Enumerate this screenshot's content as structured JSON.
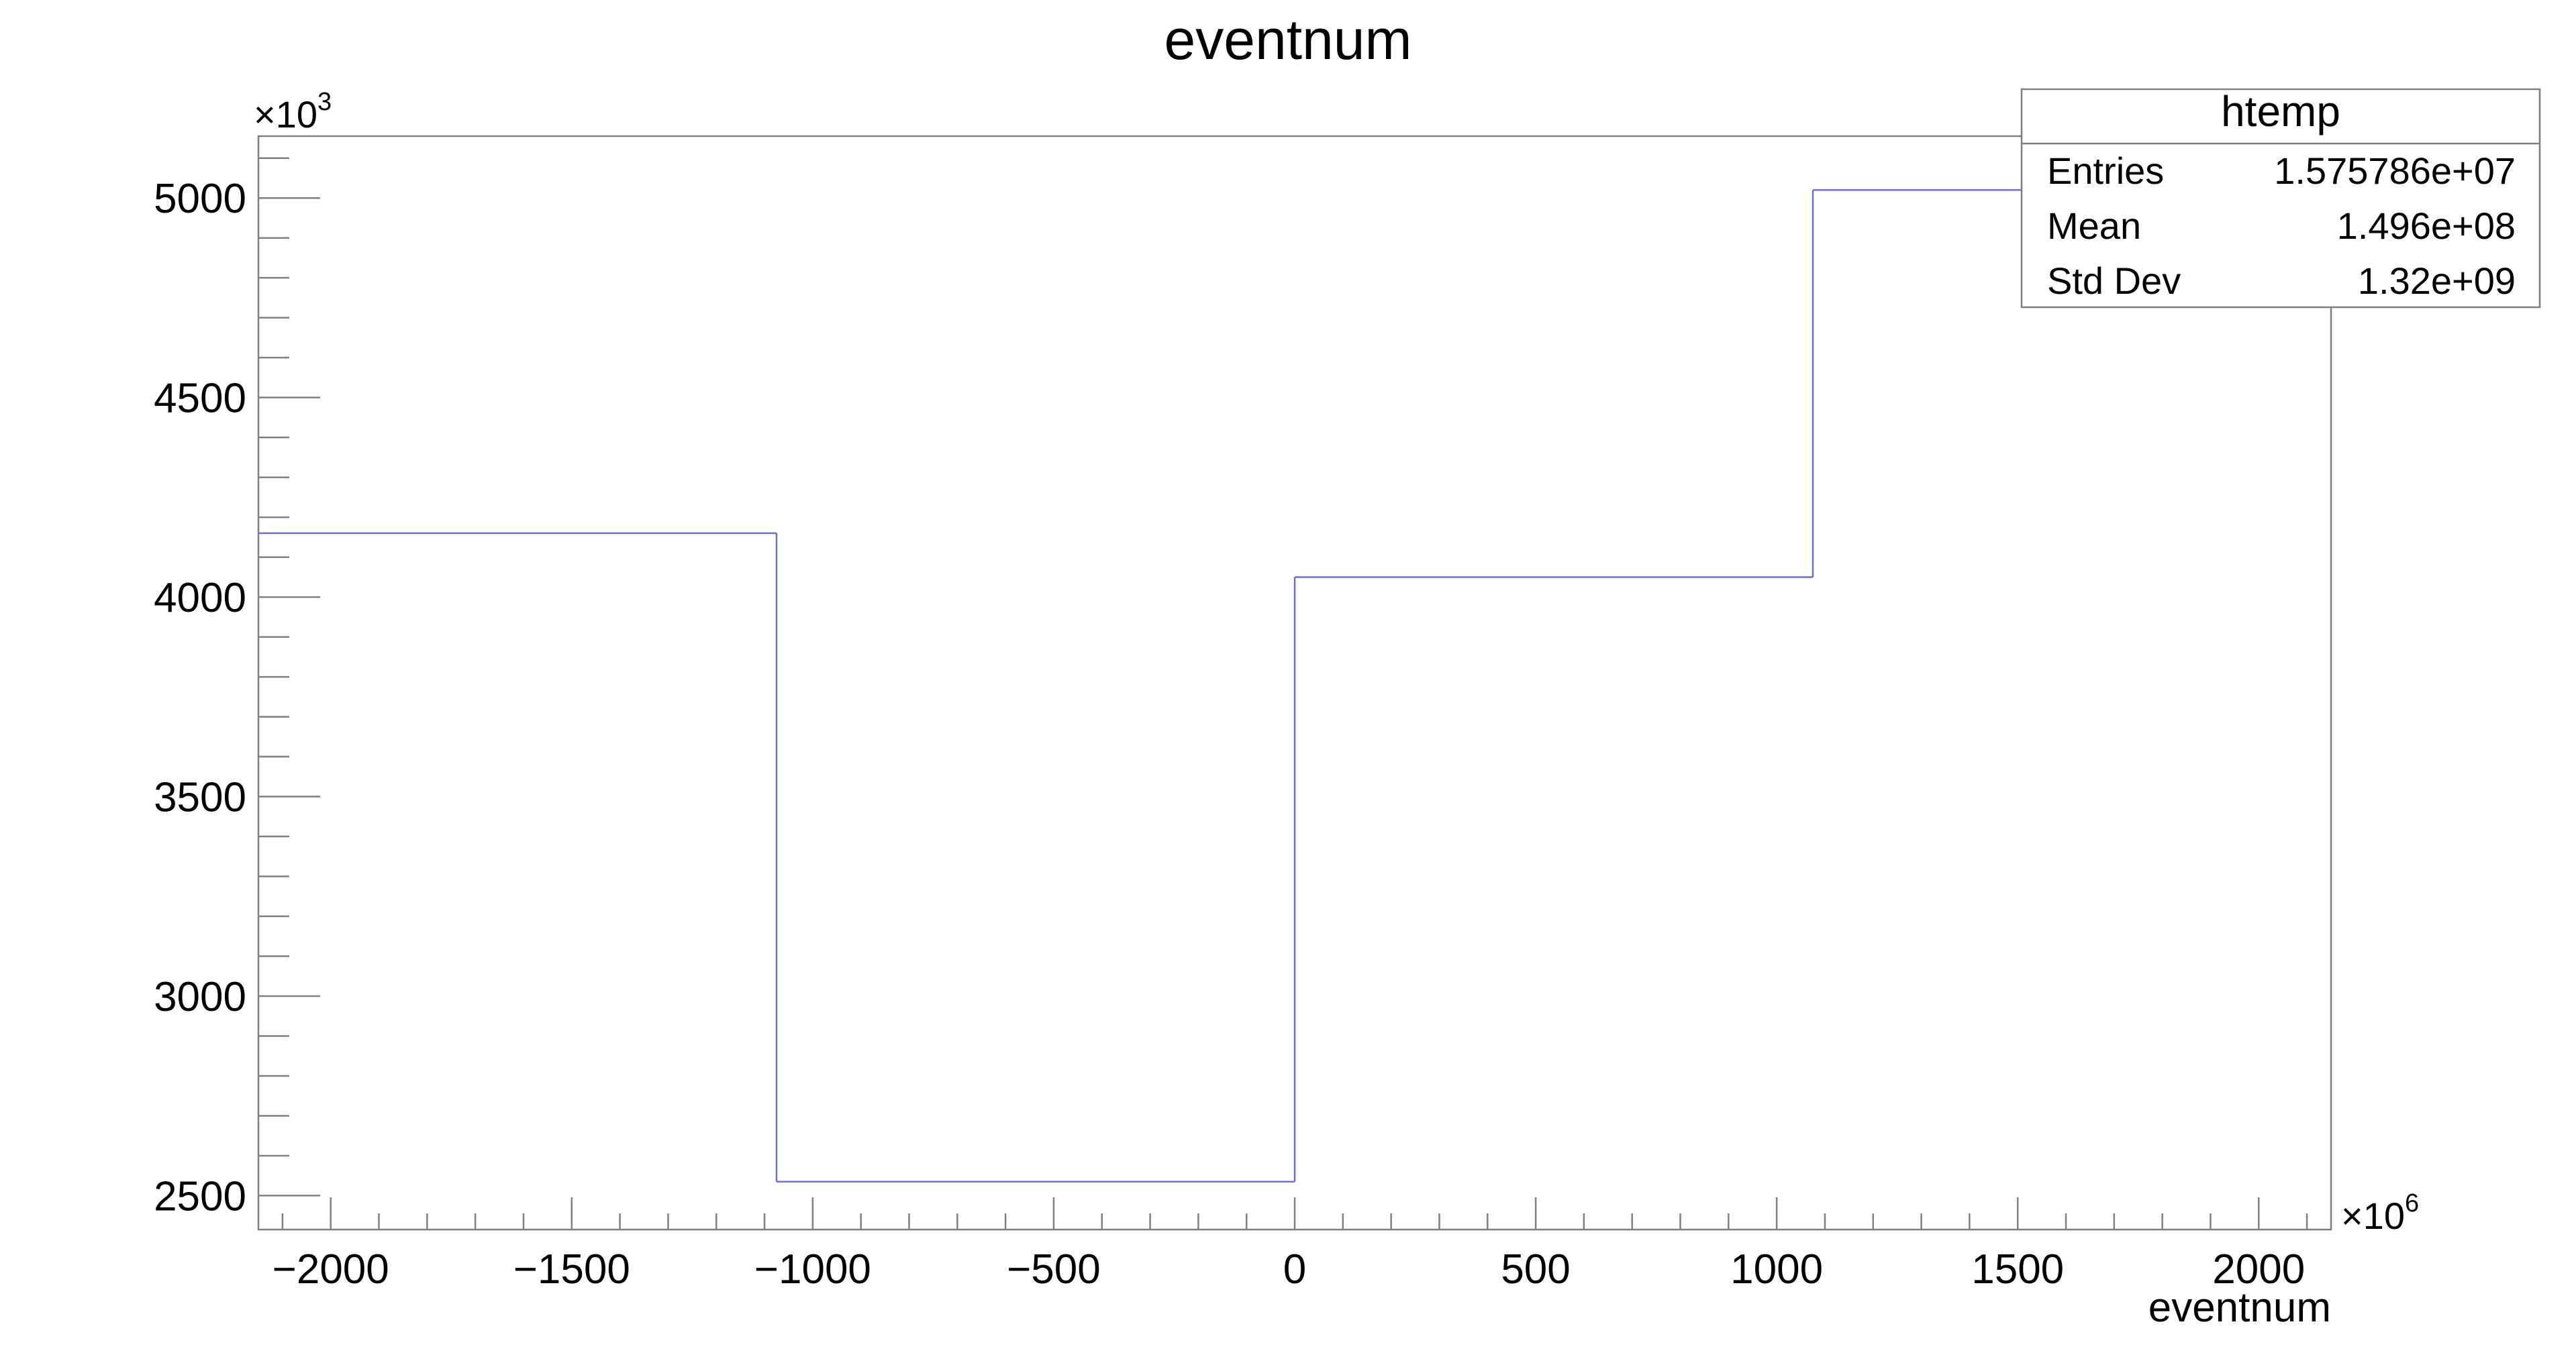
{
  "chart_data": {
    "type": "bar",
    "style": "histogram-step",
    "title": "eventnum",
    "xlabel": "eventnum",
    "ylabel": "",
    "x_multiplier_label": "10",
    "x_multiplier_exp": "6",
    "y_multiplier_label": "10",
    "y_multiplier_exp": "3",
    "xlim": [
      -2150,
      2150
    ],
    "ylim": [
      2415,
      5155
    ],
    "x_ticks": [
      -2000,
      -1500,
      -1000,
      -500,
      0,
      500,
      1000,
      1500,
      2000
    ],
    "x_tick_labels": [
      "−2000",
      "−1500",
      "−1000",
      "−500",
      "0",
      "500",
      "1000",
      "1500",
      "2000"
    ],
    "y_ticks": [
      2500,
      3000,
      3500,
      4000,
      4500,
      5000
    ],
    "y_tick_labels": [
      "2500",
      "3000",
      "3500",
      "4000",
      "4500",
      "5000"
    ],
    "bin_edges": [
      -2150,
      -1075,
      0,
      1075,
      2150
    ],
    "values": [
      4160,
      2535,
      4050,
      5020
    ],
    "grid": false,
    "line_color": "#6e6ed0"
  },
  "stats_box": {
    "title": "htemp",
    "rows": [
      {
        "label": "Entries",
        "value": "1.575786e+07"
      },
      {
        "label": "Mean",
        "value": "1.496e+08"
      },
      {
        "label": "Std Dev",
        "value": "1.32e+09"
      }
    ]
  }
}
